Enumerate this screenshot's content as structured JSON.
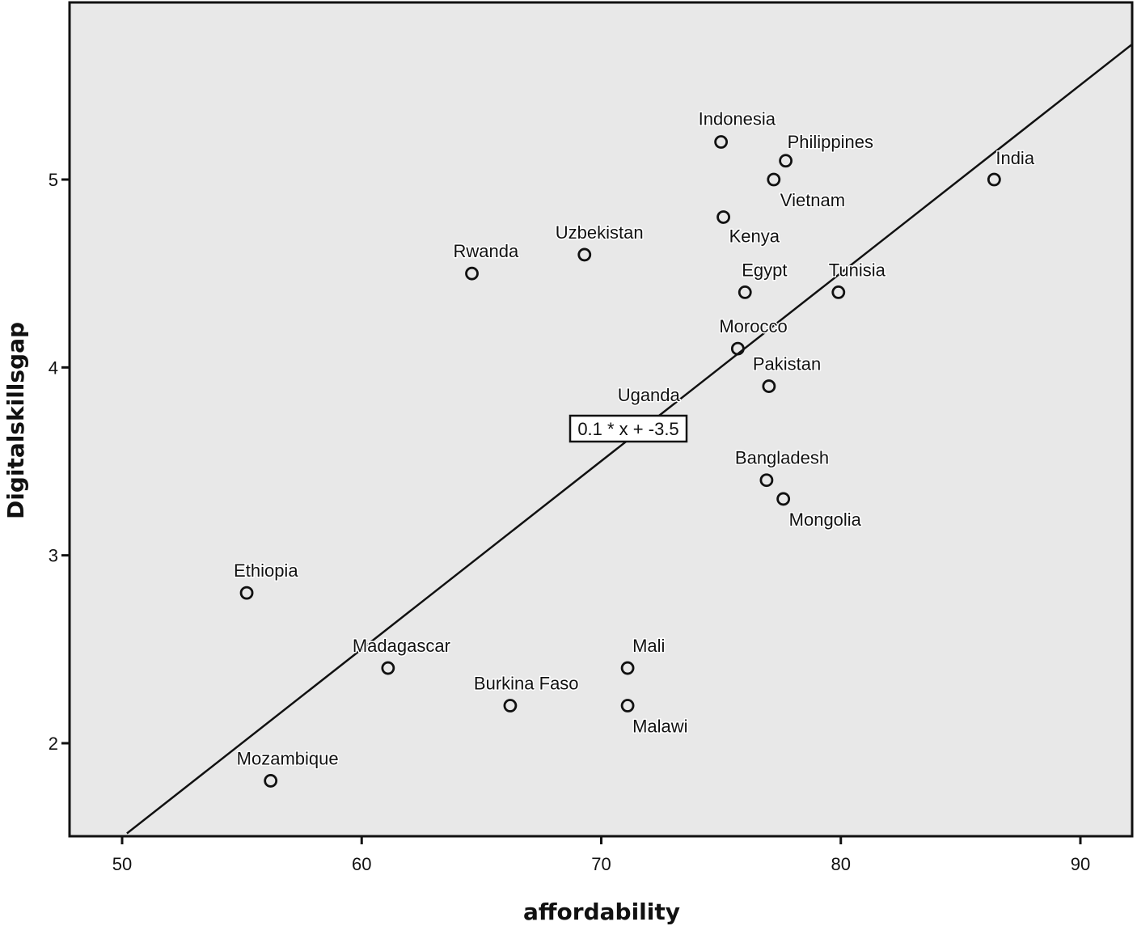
{
  "chart_data": {
    "type": "scatter",
    "title": "",
    "xlabel": "affordability",
    "ylabel": "Digitalskillsgap",
    "xlim": [
      47.8,
      92.2
    ],
    "ylim": [
      1.52,
      5.95
    ],
    "x_ticks": [
      50,
      60,
      70,
      80,
      90
    ],
    "y_ticks": [
      2,
      3,
      4,
      5
    ],
    "grid": false,
    "legend": null,
    "fit_line": {
      "equation": "0.1 * x + -3.5",
      "slope": 0.1,
      "intercept": -3.5
    },
    "points": [
      {
        "label": "Indonesia",
        "x": 75.0,
        "y": 5.2
      },
      {
        "label": "Philippines",
        "x": 77.7,
        "y": 5.1
      },
      {
        "label": "Vietnam",
        "x": 77.2,
        "y": 5.0
      },
      {
        "label": "India",
        "x": 86.4,
        "y": 5.0
      },
      {
        "label": "Kenya",
        "x": 75.1,
        "y": 4.8
      },
      {
        "label": "Uzbekistan",
        "x": 69.3,
        "y": 4.6
      },
      {
        "label": "Rwanda",
        "x": 64.6,
        "y": 4.5
      },
      {
        "label": "Egypt",
        "x": 76.0,
        "y": 4.4
      },
      {
        "label": "Tunisia",
        "x": 79.9,
        "y": 4.4
      },
      {
        "label": "Morocco",
        "x": 75.7,
        "y": 4.1
      },
      {
        "label": "Pakistan",
        "x": 77.0,
        "y": 3.9
      },
      {
        "label": "Uganda",
        "x": 72.1,
        "y": 3.7
      },
      {
        "label": "Bangladesh",
        "x": 76.9,
        "y": 3.4
      },
      {
        "label": "Mongolia",
        "x": 77.6,
        "y": 3.3
      },
      {
        "label": "Ethiopia",
        "x": 55.2,
        "y": 2.8
      },
      {
        "label": "Madagascar",
        "x": 61.1,
        "y": 2.4
      },
      {
        "label": "Mali",
        "x": 71.1,
        "y": 2.4
      },
      {
        "label": "Burkina Faso",
        "x": 66.2,
        "y": 2.2
      },
      {
        "label": "Malawi",
        "x": 71.1,
        "y": 2.2
      },
      {
        "label": "Mozambique",
        "x": 56.2,
        "y": 1.8
      }
    ]
  },
  "colors": {
    "plot_background": "#e8e8e8",
    "page_background": "#ffffff",
    "ink": "#111111"
  }
}
